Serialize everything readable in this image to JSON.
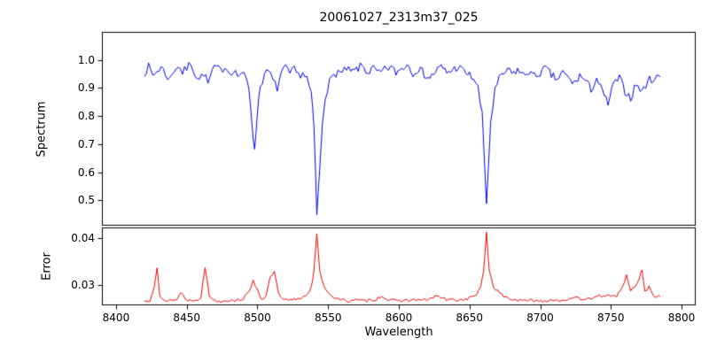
{
  "chart_data": [
    {
      "type": "line",
      "title": "20061027_2313m37_025",
      "ylabel": "Spectrum",
      "xlim": [
        8390,
        8810
      ],
      "ylim": [
        0.41,
        1.1
      ],
      "yticks": [
        1.0,
        0.9,
        0.8,
        0.7,
        0.6,
        0.5
      ],
      "ytick_labels": [
        "1.0",
        "0.9",
        "0.8",
        "0.7",
        "0.6",
        "0.5"
      ],
      "grid": false,
      "legend": "none",
      "series": [
        {
          "name": "spectrum",
          "color": "#0000ee",
          "noise_amplitude": 0.015,
          "noise_seed": 7,
          "features": "Ca II triplet absorption lines near 8498, 8542, 8662",
          "anchors": [
            [
              8420,
              0.955
            ],
            [
              8423,
              0.975
            ],
            [
              8426,
              0.945
            ],
            [
              8429,
              0.96
            ],
            [
              8432,
              0.975
            ],
            [
              8435,
              0.95
            ],
            [
              8438,
              0.93
            ],
            [
              8441,
              0.965
            ],
            [
              8444,
              0.98
            ],
            [
              8447,
              0.955
            ],
            [
              8450,
              0.97
            ],
            [
              8453,
              0.99
            ],
            [
              8456,
              0.95
            ],
            [
              8459,
              0.93
            ],
            [
              8462,
              0.955
            ],
            [
              8465,
              0.915
            ],
            [
              8468,
              0.96
            ],
            [
              8471,
              0.975
            ],
            [
              8474,
              0.96
            ],
            [
              8477,
              0.98
            ],
            [
              8480,
              0.955
            ],
            [
              8483,
              0.965
            ],
            [
              8486,
              0.945
            ],
            [
              8489,
              0.955
            ],
            [
              8492,
              0.93
            ],
            [
              8494,
              0.9
            ],
            [
              8496,
              0.79
            ],
            [
              8498,
              0.67
            ],
            [
              8500,
              0.82
            ],
            [
              8502,
              0.91
            ],
            [
              8505,
              0.945
            ],
            [
              8508,
              0.96
            ],
            [
              8511,
              0.925
            ],
            [
              8514,
              0.9
            ],
            [
              8517,
              0.955
            ],
            [
              8520,
              0.97
            ],
            [
              8523,
              0.95
            ],
            [
              8526,
              0.965
            ],
            [
              8529,
              0.945
            ],
            [
              8532,
              0.955
            ],
            [
              8535,
              0.935
            ],
            [
              8538,
              0.88
            ],
            [
              8540,
              0.76
            ],
            [
              8542,
              0.45
            ],
            [
              8544,
              0.6
            ],
            [
              8546,
              0.78
            ],
            [
              8548,
              0.875
            ],
            [
              8551,
              0.92
            ],
            [
              8554,
              0.945
            ],
            [
              8557,
              0.96
            ],
            [
              8560,
              0.95
            ],
            [
              8563,
              0.97
            ],
            [
              8566,
              0.955
            ],
            [
              8570,
              0.965
            ],
            [
              8574,
              0.98
            ],
            [
              8578,
              0.955
            ],
            [
              8582,
              0.97
            ],
            [
              8586,
              0.95
            ],
            [
              8590,
              0.965
            ],
            [
              8594,
              0.975
            ],
            [
              8598,
              0.955
            ],
            [
              8602,
              0.97
            ],
            [
              8606,
              0.985
            ],
            [
              8610,
              0.955
            ],
            [
              8614,
              0.97
            ],
            [
              8618,
              0.95
            ],
            [
              8622,
              0.935
            ],
            [
              8626,
              0.96
            ],
            [
              8630,
              0.975
            ],
            [
              8634,
              0.955
            ],
            [
              8638,
              0.965
            ],
            [
              8642,
              0.975
            ],
            [
              8646,
              0.96
            ],
            [
              8650,
              0.945
            ],
            [
              8653,
              0.935
            ],
            [
              8656,
              0.9
            ],
            [
              8659,
              0.8
            ],
            [
              8662,
              0.49
            ],
            [
              8665,
              0.78
            ],
            [
              8668,
              0.89
            ],
            [
              8671,
              0.93
            ],
            [
              8674,
              0.95
            ],
            [
              8677,
              0.965
            ],
            [
              8680,
              0.95
            ],
            [
              8684,
              0.965
            ],
            [
              8688,
              0.945
            ],
            [
              8692,
              0.96
            ],
            [
              8696,
              0.94
            ],
            [
              8700,
              0.955
            ],
            [
              8704,
              0.97
            ],
            [
              8708,
              0.945
            ],
            [
              8712,
              0.93
            ],
            [
              8716,
              0.955
            ],
            [
              8720,
              0.935
            ],
            [
              8724,
              0.915
            ],
            [
              8728,
              0.945
            ],
            [
              8732,
              0.925
            ],
            [
              8736,
              0.895
            ],
            [
              8740,
              0.935
            ],
            [
              8744,
              0.885
            ],
            [
              8748,
              0.845
            ],
            [
              8752,
              0.915
            ],
            [
              8756,
              0.935
            ],
            [
              8760,
              0.89
            ],
            [
              8764,
              0.865
            ],
            [
              8768,
              0.915
            ],
            [
              8772,
              0.885
            ],
            [
              8776,
              0.925
            ],
            [
              8780,
              0.935
            ],
            [
              8785,
              0.94
            ]
          ]
        }
      ]
    },
    {
      "type": "line",
      "ylabel": "Error",
      "xlabel": "Wavelength",
      "xlim": [
        8390,
        8810
      ],
      "ylim": [
        0.0258,
        0.0422
      ],
      "yticks": [
        0.04,
        0.03
      ],
      "ytick_labels": [
        "0.04",
        "0.03"
      ],
      "xticks": [
        8400,
        8450,
        8500,
        8550,
        8600,
        8650,
        8700,
        8750,
        8800
      ],
      "xtick_labels": [
        "8400",
        "8450",
        "8500",
        "8550",
        "8600",
        "8650",
        "8700",
        "8750",
        "8800"
      ],
      "grid": false,
      "legend": "none",
      "series": [
        {
          "name": "error",
          "color": "#ee0000",
          "noise_amplitude": 0.00032,
          "noise_seed": 13,
          "anchors": [
            [
              8420,
              0.0267
            ],
            [
              8424,
              0.0269
            ],
            [
              8427,
              0.03
            ],
            [
              8429,
              0.0338
            ],
            [
              8431,
              0.0275
            ],
            [
              8434,
              0.0267
            ],
            [
              8438,
              0.027
            ],
            [
              8442,
              0.0268
            ],
            [
              8446,
              0.0285
            ],
            [
              8449,
              0.0272
            ],
            [
              8452,
              0.0268
            ],
            [
              8456,
              0.027
            ],
            [
              8460,
              0.0274
            ],
            [
              8463,
              0.0338
            ],
            [
              8466,
              0.0278
            ],
            [
              8470,
              0.0268
            ],
            [
              8474,
              0.0267
            ],
            [
              8478,
              0.0269
            ],
            [
              8482,
              0.0268
            ],
            [
              8486,
              0.027
            ],
            [
              8490,
              0.0272
            ],
            [
              8494,
              0.0285
            ],
            [
              8497,
              0.0312
            ],
            [
              8500,
              0.029
            ],
            [
              8503,
              0.0272
            ],
            [
              8506,
              0.0276
            ],
            [
              8509,
              0.0315
            ],
            [
              8512,
              0.033
            ],
            [
              8515,
              0.028
            ],
            [
              8518,
              0.027
            ],
            [
              8522,
              0.0268
            ],
            [
              8526,
              0.027
            ],
            [
              8530,
              0.0273
            ],
            [
              8534,
              0.0278
            ],
            [
              8538,
              0.0295
            ],
            [
              8540,
              0.033
            ],
            [
              8542,
              0.041
            ],
            [
              8544,
              0.033
            ],
            [
              8547,
              0.03
            ],
            [
              8550,
              0.0285
            ],
            [
              8553,
              0.0277
            ],
            [
              8556,
              0.0272
            ],
            [
              8560,
              0.0269
            ],
            [
              8564,
              0.0267
            ],
            [
              8568,
              0.027
            ],
            [
              8572,
              0.0268
            ],
            [
              8576,
              0.0267
            ],
            [
              8580,
              0.0269
            ],
            [
              8584,
              0.0271
            ],
            [
              8588,
              0.0278
            ],
            [
              8591,
              0.0272
            ],
            [
              8595,
              0.0268
            ],
            [
              8599,
              0.0267
            ],
            [
              8603,
              0.0269
            ],
            [
              8607,
              0.0268
            ],
            [
              8611,
              0.027
            ],
            [
              8615,
              0.0268
            ],
            [
              8619,
              0.027
            ],
            [
              8623,
              0.0272
            ],
            [
              8627,
              0.0279
            ],
            [
              8631,
              0.0272
            ],
            [
              8635,
              0.0269
            ],
            [
              8639,
              0.027
            ],
            [
              8643,
              0.0269
            ],
            [
              8647,
              0.0271
            ],
            [
              8651,
              0.0274
            ],
            [
              8655,
              0.0282
            ],
            [
              8658,
              0.0295
            ],
            [
              8660,
              0.033
            ],
            [
              8662,
              0.0412
            ],
            [
              8664,
              0.033
            ],
            [
              8667,
              0.0298
            ],
            [
              8670,
              0.0287
            ],
            [
              8674,
              0.0278
            ],
            [
              8678,
              0.0272
            ],
            [
              8682,
              0.027
            ],
            [
              8686,
              0.0268
            ],
            [
              8690,
              0.0267
            ],
            [
              8694,
              0.0269
            ],
            [
              8698,
              0.0268
            ],
            [
              8702,
              0.0267
            ],
            [
              8706,
              0.0269
            ],
            [
              8710,
              0.027
            ],
            [
              8714,
              0.0268
            ],
            [
              8718,
              0.0271
            ],
            [
              8722,
              0.027
            ],
            [
              8726,
              0.0273
            ],
            [
              8730,
              0.0271
            ],
            [
              8734,
              0.0275
            ],
            [
              8738,
              0.0272
            ],
            [
              8742,
              0.0277
            ],
            [
              8746,
              0.0279
            ],
            [
              8750,
              0.0276
            ],
            [
              8754,
              0.0278
            ],
            [
              8758,
              0.0295
            ],
            [
              8761,
              0.032
            ],
            [
              8764,
              0.0288
            ],
            [
              8767,
              0.0298
            ],
            [
              8770,
              0.0312
            ],
            [
              8772,
              0.0335
            ],
            [
              8774,
              0.0288
            ],
            [
              8777,
              0.0296
            ],
            [
              8780,
              0.0279
            ],
            [
              8785,
              0.0276
            ]
          ]
        }
      ]
    }
  ]
}
